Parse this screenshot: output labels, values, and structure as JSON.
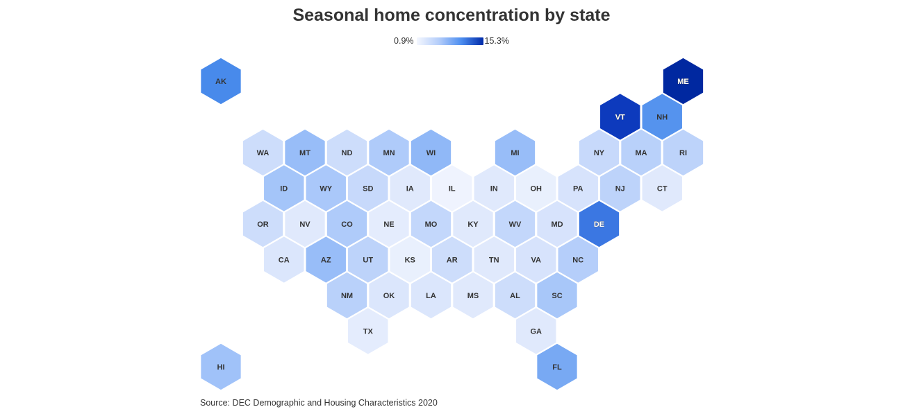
{
  "title": "Seasonal home concentration by state",
  "legend": {
    "min_label": "0.9%",
    "max_label": "15.3%",
    "color_low": "#f4f7fe",
    "color_high": "#002aa8"
  },
  "source": "Source: DEC Demographic and Housing Characteristics 2020",
  "map_data": {
    "type": "hex-tile-map",
    "value_range": [
      0.9,
      15.3
    ],
    "states": [
      {
        "abbr": "AK",
        "value": 8.5
      },
      {
        "abbr": "ME",
        "value": 15.3
      },
      {
        "abbr": "VT",
        "value": 13.2
      },
      {
        "abbr": "NH",
        "value": 8.0
      },
      {
        "abbr": "WA",
        "value": 3.0
      },
      {
        "abbr": "MT",
        "value": 5.5
      },
      {
        "abbr": "ND",
        "value": 3.0
      },
      {
        "abbr": "MN",
        "value": 4.5
      },
      {
        "abbr": "WI",
        "value": 5.8
      },
      {
        "abbr": "MI",
        "value": 5.5
      },
      {
        "abbr": "NY",
        "value": 3.3
      },
      {
        "abbr": "MA",
        "value": 4.0
      },
      {
        "abbr": "RI",
        "value": 3.8
      },
      {
        "abbr": "ID",
        "value": 5.0
      },
      {
        "abbr": "WY",
        "value": 4.7
      },
      {
        "abbr": "SD",
        "value": 3.3
      },
      {
        "abbr": "IA",
        "value": 2.0
      },
      {
        "abbr": "IL",
        "value": 1.2
      },
      {
        "abbr": "IN",
        "value": 2.0
      },
      {
        "abbr": "OH",
        "value": 1.5
      },
      {
        "abbr": "PA",
        "value": 2.5
      },
      {
        "abbr": "NJ",
        "value": 3.8
      },
      {
        "abbr": "CT",
        "value": 2.0
      },
      {
        "abbr": "OR",
        "value": 3.0
      },
      {
        "abbr": "NV",
        "value": 2.0
      },
      {
        "abbr": "CO",
        "value": 4.5
      },
      {
        "abbr": "NE",
        "value": 1.8
      },
      {
        "abbr": "MO",
        "value": 3.5
      },
      {
        "abbr": "KY",
        "value": 2.0
      },
      {
        "abbr": "WV",
        "value": 3.5
      },
      {
        "abbr": "MD",
        "value": 2.5
      },
      {
        "abbr": "DE",
        "value": 9.5
      },
      {
        "abbr": "CA",
        "value": 2.3
      },
      {
        "abbr": "AZ",
        "value": 5.5
      },
      {
        "abbr": "UT",
        "value": 3.8
      },
      {
        "abbr": "KS",
        "value": 1.5
      },
      {
        "abbr": "AR",
        "value": 3.0
      },
      {
        "abbr": "TN",
        "value": 2.0
      },
      {
        "abbr": "VA",
        "value": 2.5
      },
      {
        "abbr": "NC",
        "value": 4.2
      },
      {
        "abbr": "NM",
        "value": 4.0
      },
      {
        "abbr": "OK",
        "value": 2.3
      },
      {
        "abbr": "LA",
        "value": 2.3
      },
      {
        "abbr": "MS",
        "value": 2.0
      },
      {
        "abbr": "AL",
        "value": 3.0
      },
      {
        "abbr": "SC",
        "value": 4.8
      },
      {
        "abbr": "TX",
        "value": 1.8
      },
      {
        "abbr": "GA",
        "value": 2.0
      },
      {
        "abbr": "HI",
        "value": 5.2
      },
      {
        "abbr": "FL",
        "value": 6.7
      }
    ]
  }
}
